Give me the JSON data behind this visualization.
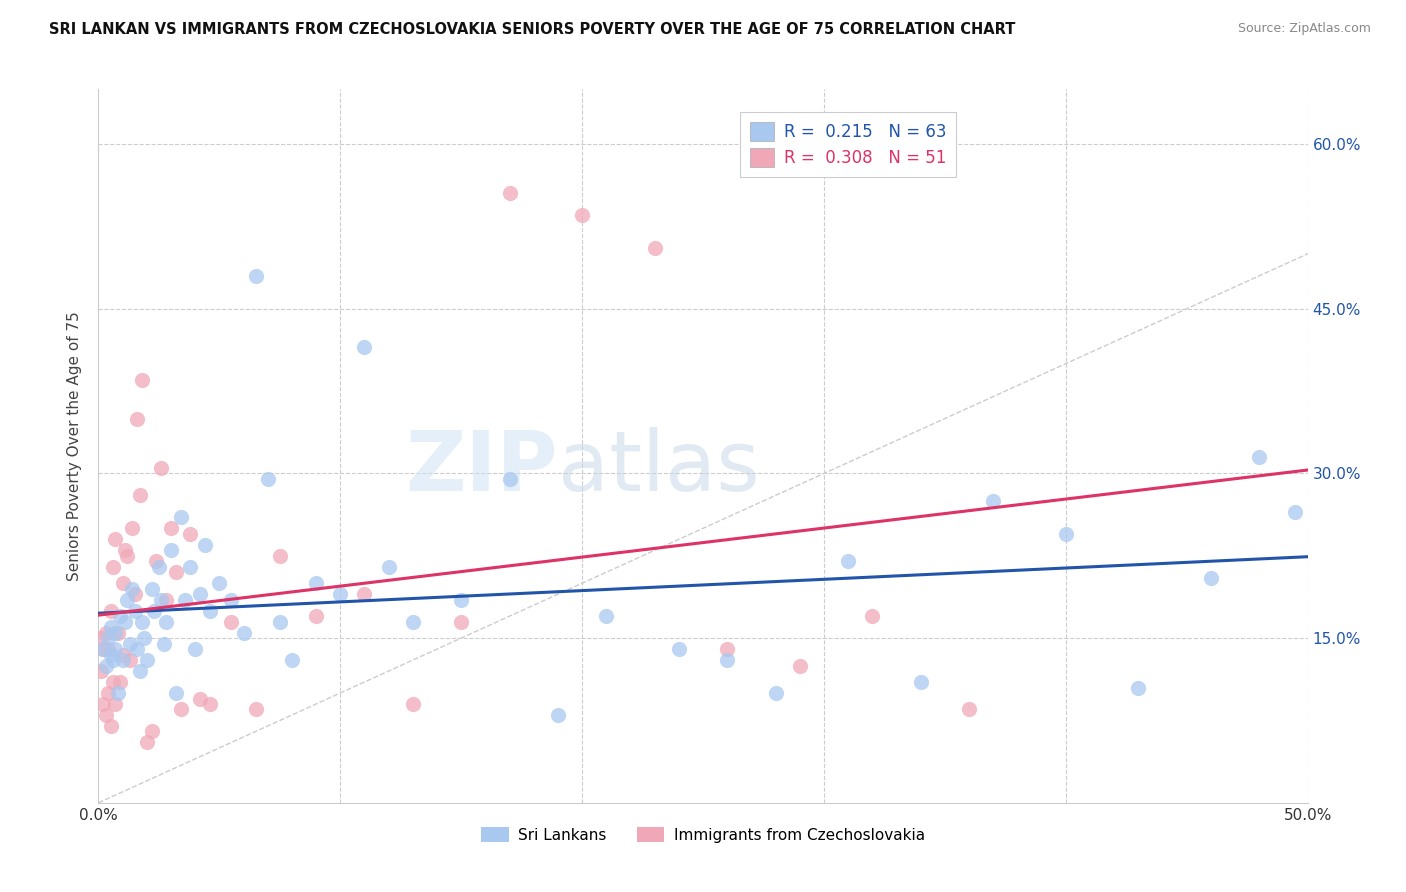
{
  "title": "SRI LANKAN VS IMMIGRANTS FROM CZECHOSLOVAKIA SENIORS POVERTY OVER THE AGE OF 75 CORRELATION CHART",
  "source": "Source: ZipAtlas.com",
  "ylabel": "Seniors Poverty Over the Age of 75",
  "xlim": [
    0.0,
    0.5
  ],
  "ylim": [
    0.0,
    0.65
  ],
  "sri_lankan_color": "#a8c8f0",
  "czech_color": "#f0a8b8",
  "sri_lankan_line_color": "#2255aa",
  "czech_line_color": "#dd3366",
  "sri_lankan_R": 0.215,
  "sri_lankan_N": 63,
  "czech_R": 0.308,
  "czech_N": 51,
  "legend_label_1": "Sri Lankans",
  "legend_label_2": "Immigrants from Czechoslovakia",
  "sri_lankans_x": [
    0.002,
    0.003,
    0.004,
    0.005,
    0.005,
    0.006,
    0.007,
    0.007,
    0.008,
    0.009,
    0.01,
    0.011,
    0.012,
    0.013,
    0.014,
    0.015,
    0.016,
    0.017,
    0.018,
    0.019,
    0.02,
    0.022,
    0.023,
    0.025,
    0.026,
    0.027,
    0.028,
    0.03,
    0.032,
    0.034,
    0.036,
    0.038,
    0.04,
    0.042,
    0.044,
    0.046,
    0.05,
    0.055,
    0.06,
    0.065,
    0.07,
    0.075,
    0.08,
    0.09,
    0.1,
    0.11,
    0.12,
    0.13,
    0.15,
    0.17,
    0.19,
    0.21,
    0.24,
    0.26,
    0.28,
    0.31,
    0.34,
    0.37,
    0.4,
    0.43,
    0.46,
    0.48,
    0.495
  ],
  "sri_lankans_y": [
    0.14,
    0.125,
    0.15,
    0.135,
    0.16,
    0.13,
    0.155,
    0.14,
    0.1,
    0.17,
    0.13,
    0.165,
    0.185,
    0.145,
    0.195,
    0.175,
    0.14,
    0.12,
    0.165,
    0.15,
    0.13,
    0.195,
    0.175,
    0.215,
    0.185,
    0.145,
    0.165,
    0.23,
    0.1,
    0.26,
    0.185,
    0.215,
    0.14,
    0.19,
    0.235,
    0.175,
    0.2,
    0.185,
    0.155,
    0.48,
    0.295,
    0.165,
    0.13,
    0.2,
    0.19,
    0.415,
    0.215,
    0.165,
    0.185,
    0.295,
    0.08,
    0.17,
    0.14,
    0.13,
    0.1,
    0.22,
    0.11,
    0.275,
    0.245,
    0.105,
    0.205,
    0.315,
    0.265
  ],
  "czech_x": [
    0.001,
    0.001,
    0.002,
    0.002,
    0.003,
    0.003,
    0.004,
    0.004,
    0.005,
    0.005,
    0.006,
    0.006,
    0.007,
    0.007,
    0.008,
    0.009,
    0.01,
    0.01,
    0.011,
    0.012,
    0.013,
    0.014,
    0.015,
    0.016,
    0.017,
    0.018,
    0.02,
    0.022,
    0.024,
    0.026,
    0.028,
    0.03,
    0.032,
    0.034,
    0.038,
    0.042,
    0.046,
    0.055,
    0.065,
    0.075,
    0.09,
    0.11,
    0.13,
    0.15,
    0.17,
    0.2,
    0.23,
    0.26,
    0.29,
    0.32,
    0.36
  ],
  "czech_y": [
    0.15,
    0.12,
    0.14,
    0.09,
    0.155,
    0.08,
    0.14,
    0.1,
    0.175,
    0.07,
    0.215,
    0.11,
    0.24,
    0.09,
    0.155,
    0.11,
    0.2,
    0.135,
    0.23,
    0.225,
    0.13,
    0.25,
    0.19,
    0.35,
    0.28,
    0.385,
    0.055,
    0.065,
    0.22,
    0.305,
    0.185,
    0.25,
    0.21,
    0.085,
    0.245,
    0.095,
    0.09,
    0.165,
    0.085,
    0.225,
    0.17,
    0.19,
    0.09,
    0.165,
    0.555,
    0.535,
    0.505,
    0.14,
    0.125,
    0.17,
    0.085
  ]
}
